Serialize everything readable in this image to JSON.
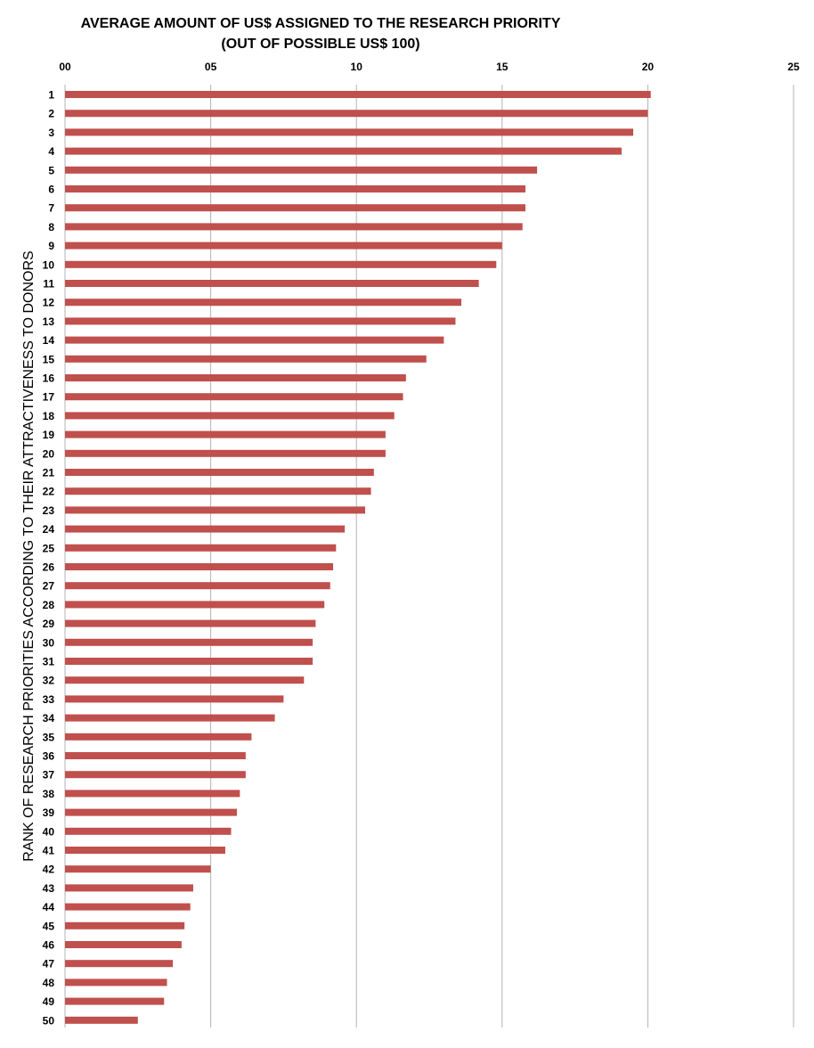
{
  "chart_data": {
    "type": "bar",
    "orientation": "horizontal",
    "title": "AVERAGE AMOUNT OF US$ ASSIGNED TO THE RESEARCH PRIORITY",
    "subtitle": "(OUT OF POSSIBLE US$ 100)",
    "xlabel": "",
    "ylabel": "RANK OF RESEARCH PRIORITIES ACCORDING TO THEIR ATTRACTIVENESS TO DONORS",
    "xlim": [
      0,
      25
    ],
    "x_ticks": [
      "00",
      "05",
      "10",
      "15",
      "20",
      "25"
    ],
    "x_axis_position": "top",
    "grid": true,
    "categories": [
      "1",
      "2",
      "3",
      "4",
      "5",
      "6",
      "7",
      "8",
      "9",
      "10",
      "11",
      "12",
      "13",
      "14",
      "15",
      "16",
      "17",
      "18",
      "19",
      "20",
      "21",
      "22",
      "23",
      "24",
      "25",
      "26",
      "27",
      "28",
      "29",
      "30",
      "31",
      "32",
      "33",
      "34",
      "35",
      "36",
      "37",
      "38",
      "39",
      "40",
      "41",
      "42",
      "43",
      "44",
      "45",
      "46",
      "47",
      "48",
      "49",
      "50"
    ],
    "values": [
      20.1,
      20.0,
      19.5,
      19.1,
      16.2,
      15.8,
      15.8,
      15.7,
      15.0,
      14.8,
      14.2,
      13.6,
      13.4,
      13.0,
      12.4,
      11.7,
      11.6,
      11.3,
      11.0,
      11.0,
      10.6,
      10.5,
      10.3,
      9.6,
      9.3,
      9.2,
      9.1,
      8.9,
      8.6,
      8.5,
      8.5,
      8.2,
      7.5,
      7.2,
      6.4,
      6.2,
      6.2,
      6.0,
      5.9,
      5.7,
      5.5,
      5.0,
      4.4,
      4.3,
      4.1,
      4.0,
      3.7,
      3.5,
      3.4,
      2.5
    ],
    "bar_color": "#c0504d",
    "grid_color": "#b3b3b3"
  }
}
